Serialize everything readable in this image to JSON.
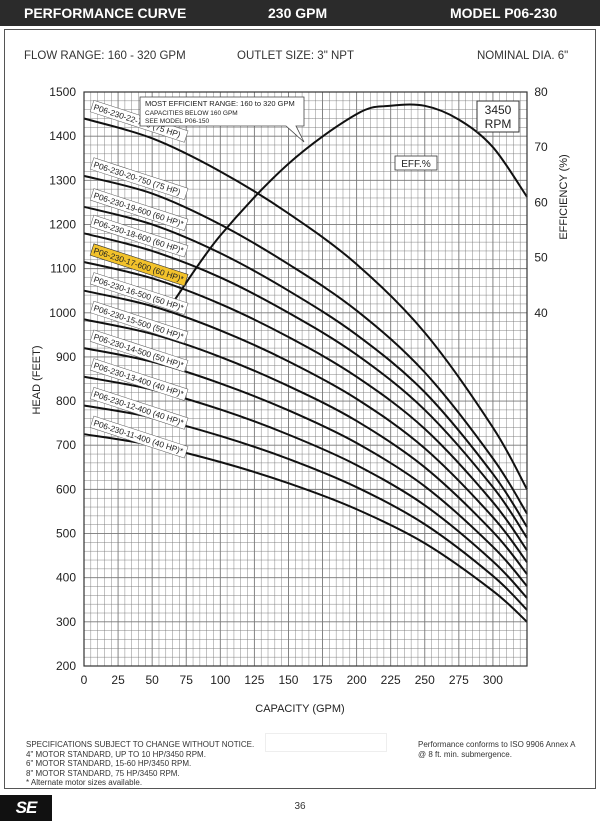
{
  "header": {
    "title": "PERFORMANCE CURVE",
    "flow": "230 GPM",
    "model": "MODEL  P06-230"
  },
  "specs": {
    "flow_range": "FLOW RANGE: 160 - 320 GPM",
    "outlet": "OUTLET SIZE: 3\" NPT",
    "diameter": "NOMINAL DIA. 6\""
  },
  "callout": {
    "line1": "MOST EFFICIENT RANGE: 160 to 320 GPM",
    "line2": "CAPACITIES BELOW 160 GPM",
    "line3": "SEE  MODEL  P06-150"
  },
  "rpm": {
    "line1": "3450",
    "line2": "RPM"
  },
  "eff_label": "EFF.%",
  "footer": {
    "line1": "SPECIFICATIONS SUBJECT TO CHANGE WITHOUT NOTICE.",
    "line2": "4\" MOTOR STANDARD, UP TO 10 HP/3450 RPM.",
    "line3": "6\" MOTOR STANDARD, 15-60 HP/3450 RPM.",
    "line4": "8\" MOTOR STANDARD, 75 HP/3450 RPM.",
    "line5": "* Alternate motor sizes available.",
    "iso1": "Performance conforms to ISO 9906 Annex A",
    "iso2": "@ 8 ft. min. submergence."
  },
  "logo_text": "SE",
  "page_number": "36",
  "colors": {
    "header_bg": "#2b2b2b",
    "highlight": "#f2c22b",
    "grid": "#555555"
  },
  "chart_data": {
    "type": "line",
    "xlabel": "CAPACITY (GPM)",
    "ylabel": "HEAD (FEET)",
    "y2label": "EFFICIENCY (%)",
    "xlim": [
      0,
      325
    ],
    "ylim": [
      200,
      1500
    ],
    "y2lim": [
      40,
      80
    ],
    "x_ticks": [
      0,
      25,
      50,
      75,
      100,
      125,
      150,
      175,
      200,
      225,
      250,
      275,
      300
    ],
    "y_ticks": [
      200,
      300,
      400,
      500,
      600,
      700,
      800,
      900,
      1000,
      1100,
      1200,
      1300,
      1400,
      1500
    ],
    "y2_ticks": [
      40,
      50,
      60,
      70,
      80
    ],
    "grid": true,
    "highlighted_series": "P06-230-17-600 (60 HP)*",
    "series": [
      {
        "name": "P06-230-22-750 (75 HP)",
        "x": [
          0,
          50,
          100,
          150,
          200,
          250,
          300,
          325
        ],
        "y": [
          1440,
          1395,
          1320,
          1225,
          1110,
          955,
          740,
          600
        ]
      },
      {
        "name": "P06-230-20-750 (75 HP)",
        "x": [
          0,
          50,
          100,
          150,
          200,
          250,
          300,
          325
        ],
        "y": [
          1310,
          1270,
          1200,
          1110,
          1005,
          865,
          670,
          545
        ]
      },
      {
        "name": "P06-230-19-600 (60 HP)*",
        "x": [
          0,
          50,
          100,
          150,
          200,
          250,
          300,
          325
        ],
        "y": [
          1240,
          1200,
          1135,
          1050,
          950,
          820,
          635,
          515
        ]
      },
      {
        "name": "P06-230-18-600 (60 HP)*",
        "x": [
          0,
          50,
          100,
          150,
          200,
          250,
          300,
          325
        ],
        "y": [
          1180,
          1140,
          1080,
          1000,
          905,
          780,
          605,
          490
        ]
      },
      {
        "name": "P06-230-17-600 (60 HP)*",
        "x": [
          0,
          50,
          100,
          150,
          200,
          250,
          300,
          325
        ],
        "y": [
          1115,
          1078,
          1020,
          945,
          855,
          737,
          571,
          462
        ]
      },
      {
        "name": "P06-230-16-500 (50 HP)*",
        "x": [
          0,
          50,
          100,
          150,
          200,
          250,
          300,
          325
        ],
        "y": [
          1050,
          1015,
          960,
          890,
          805,
          693,
          537,
          435
        ]
      },
      {
        "name": "P06-230-15-500 (50 HP)*",
        "x": [
          0,
          50,
          100,
          150,
          200,
          250,
          300,
          325
        ],
        "y": [
          985,
          952,
          900,
          834,
          755,
          650,
          504,
          408
        ]
      },
      {
        "name": "P06-230-14-500 (50 HP)*",
        "x": [
          0,
          50,
          100,
          150,
          200,
          250,
          300,
          325
        ],
        "y": [
          920,
          889,
          840,
          779,
          705,
          607,
          470,
          381
        ]
      },
      {
        "name": "P06-230-13-400 (40 HP)*",
        "x": [
          0,
          50,
          100,
          150,
          200,
          250,
          300,
          325
        ],
        "y": [
          855,
          826,
          781,
          724,
          655,
          564,
          437,
          354
        ]
      },
      {
        "name": "P06-230-12-400 (40 HP)*",
        "x": [
          0,
          50,
          100,
          150,
          200,
          250,
          300,
          325
        ],
        "y": [
          790,
          763,
          721,
          669,
          605,
          521,
          404,
          327
        ]
      },
      {
        "name": "P06-230-11-400 (40 HP)*",
        "x": [
          0,
          50,
          100,
          150,
          200,
          250,
          300,
          325
        ],
        "y": [
          725,
          700,
          662,
          614,
          555,
          478,
          370,
          300
        ]
      }
    ],
    "efficiency": {
      "name": "EFF.%",
      "x": [
        67,
        100,
        150,
        200,
        225,
        250,
        275,
        300,
        325
      ],
      "y": [
        42.5,
        54,
        67,
        76,
        77.5,
        77.5,
        75,
        70,
        61
      ]
    }
  }
}
